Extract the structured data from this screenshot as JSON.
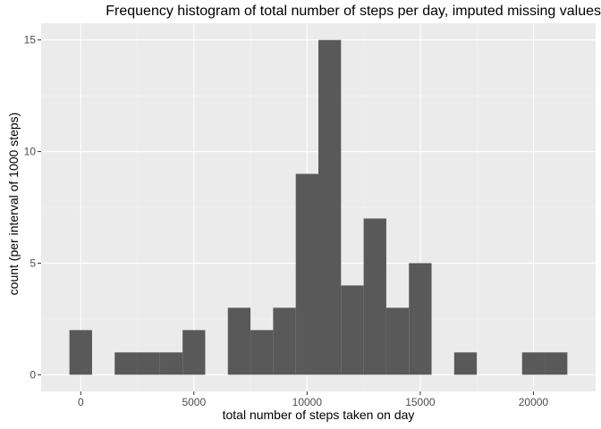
{
  "chart_data": {
    "type": "bar",
    "title": "Frequency histogram of total number of steps per day, imputed missing values",
    "xlabel": "total number of steps taken on day",
    "ylabel": "count (per interval of 1000 steps)",
    "binwidth": 1000,
    "bins": [
      {
        "center": 0,
        "count": 2
      },
      {
        "center": 2000,
        "count": 1
      },
      {
        "center": 3000,
        "count": 1
      },
      {
        "center": 4000,
        "count": 1
      },
      {
        "center": 5000,
        "count": 2
      },
      {
        "center": 7000,
        "count": 3
      },
      {
        "center": 8000,
        "count": 2
      },
      {
        "center": 9000,
        "count": 3
      },
      {
        "center": 10000,
        "count": 9
      },
      {
        "center": 11000,
        "count": 15
      },
      {
        "center": 12000,
        "count": 4
      },
      {
        "center": 13000,
        "count": 7
      },
      {
        "center": 14000,
        "count": 3
      },
      {
        "center": 15000,
        "count": 5
      },
      {
        "center": 17000,
        "count": 1
      },
      {
        "center": 20000,
        "count": 1
      },
      {
        "center": 21000,
        "count": 1
      }
    ],
    "xlim": [
      -1750,
      22750
    ],
    "ylim": [
      -0.75,
      15.75
    ],
    "xticks": [
      0,
      5000,
      10000,
      15000,
      20000
    ],
    "xtick_labels": [
      "0",
      "5000",
      "10000",
      "15000",
      "20000"
    ],
    "yticks": [
      0,
      5,
      10,
      15
    ],
    "ytick_labels": [
      "0",
      "5",
      "10",
      "15"
    ],
    "grid": true,
    "colors": {
      "panel": "#ebebeb",
      "grid_major": "#ffffff",
      "grid_minor": "#f5f5f5",
      "bar": "#595959",
      "tick_text": "#4d4d4d",
      "tick_mark": "#333333"
    }
  }
}
